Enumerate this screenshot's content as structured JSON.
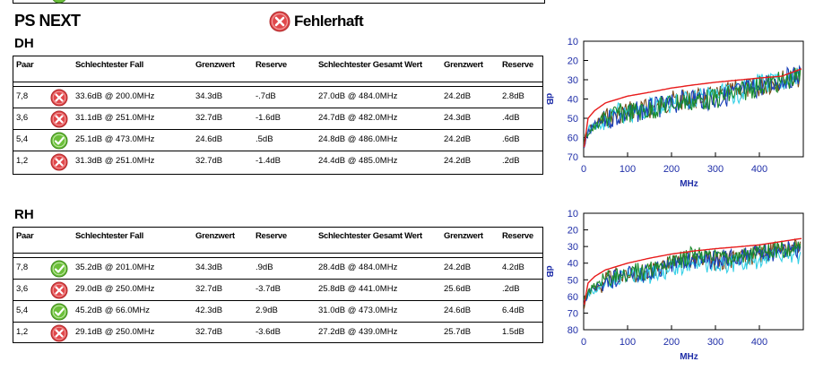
{
  "report": {
    "title": "PS NEXT",
    "status_label": "Fehlerhaft",
    "status_icon": "fail-icon"
  },
  "colors": {
    "fail": "#e0484b",
    "pass": "#6cbf3a",
    "axis_text": "#1f2ea8",
    "limit_line": "#e81a1a",
    "series": [
      "#1b8a2c",
      "#1a3fb8",
      "#35d0e6",
      "#7a4a1a"
    ]
  },
  "columns": {
    "pair": "Paar",
    "worst_case": "Schlechtester Fall",
    "limit": "Grenzwert",
    "margin": "Reserve",
    "worst_total": "Schlechtester Gesamt Wert",
    "limit2": "Grenzwert",
    "margin2": "Reserve"
  },
  "sections": {
    "dh": {
      "label": "DH",
      "rows": [
        {
          "pair": "7,8",
          "result": "fail",
          "worst": "33.6dB @ 200.0MHz",
          "limit": "34.3dB",
          "margin": "-.7dB",
          "total": "27.0dB @ 484.0MHz",
          "limit2": "24.2dB",
          "margin2": "2.8dB"
        },
        {
          "pair": "3,6",
          "result": "fail",
          "worst": "31.1dB @ 251.0MHz",
          "limit": "32.7dB",
          "margin": "-1.6dB",
          "total": "24.7dB @ 482.0MHz",
          "limit2": "24.3dB",
          "margin2": ".4dB"
        },
        {
          "pair": "5,4",
          "result": "pass",
          "worst": "25.1dB @ 473.0MHz",
          "limit": "24.6dB",
          "margin": ".5dB",
          "total": "24.8dB @ 486.0MHz",
          "limit2": "24.2dB",
          "margin2": ".6dB"
        },
        {
          "pair": "1,2",
          "result": "fail",
          "worst": "31.3dB @ 251.0MHz",
          "limit": "32.7dB",
          "margin": "-1.4dB",
          "total": "24.4dB @ 485.0MHz",
          "limit2": "24.2dB",
          "margin2": ".2dB"
        }
      ]
    },
    "rh": {
      "label": "RH",
      "rows": [
        {
          "pair": "7,8",
          "result": "pass",
          "worst": "35.2dB @ 201.0MHz",
          "limit": "34.3dB",
          "margin": ".9dB",
          "total": "28.4dB @ 484.0MHz",
          "limit2": "24.2dB",
          "margin2": "4.2dB"
        },
        {
          "pair": "3,6",
          "result": "fail",
          "worst": "29.0dB @ 250.0MHz",
          "limit": "32.7dB",
          "margin": "-3.7dB",
          "total": "25.8dB @ 441.0MHz",
          "limit2": "25.6dB",
          "margin2": ".2dB"
        },
        {
          "pair": "5,4",
          "result": "pass",
          "worst": "45.2dB @ 66.0MHz",
          "limit": "42.3dB",
          "margin": "2.9dB",
          "total": "31.0dB @ 473.0MHz",
          "limit2": "24.6dB",
          "margin2": "6.4dB"
        },
        {
          "pair": "1,2",
          "result": "fail",
          "worst": "29.1dB @ 250.0MHz",
          "limit": "32.7dB",
          "margin": "-3.6dB",
          "total": "27.2dB @ 439.0MHz",
          "limit2": "25.7dB",
          "margin2": "1.5dB"
        }
      ]
    }
  },
  "chart_data": [
    {
      "type": "line",
      "xlabel": "MHz",
      "ylabel": "dB",
      "xlim": [
        0,
        500
      ],
      "xticks": [
        0,
        100,
        200,
        300,
        400
      ],
      "ylim": [
        10,
        70
      ],
      "yticks": [
        10,
        20,
        30,
        40,
        50,
        60,
        70
      ],
      "y_inverted": true,
      "limit": {
        "x": [
          1,
          10,
          25,
          50,
          100,
          150,
          200,
          250,
          300,
          350,
          400,
          450,
          500
        ],
        "y": [
          65,
          50,
          46,
          42,
          38.5,
          36.5,
          34.3,
          32.7,
          31.3,
          30.2,
          29.1,
          28.2,
          24
        ]
      },
      "series": [
        {
          "x": [
            1,
            10,
            25,
            50,
            75,
            100,
            150,
            200,
            250,
            300,
            350,
            400,
            450,
            500
          ],
          "y": [
            62,
            57,
            55,
            50,
            48,
            47,
            46,
            42,
            41,
            40,
            37,
            33,
            31,
            28
          ]
        },
        {
          "x": [
            1,
            10,
            25,
            50,
            75,
            100,
            150,
            200,
            250,
            300,
            350,
            400,
            450,
            500
          ],
          "y": [
            64,
            58,
            54,
            51,
            49,
            48,
            45,
            43,
            39,
            41,
            36,
            34,
            30,
            27
          ]
        },
        {
          "x": [
            1,
            10,
            25,
            50,
            75,
            100,
            150,
            200,
            250,
            300,
            350,
            400,
            450,
            500
          ],
          "y": [
            63,
            56,
            55,
            52,
            47,
            49,
            44,
            42,
            40,
            38,
            37,
            32,
            31,
            27
          ]
        },
        {
          "x": [
            1,
            10,
            25,
            50,
            75,
            100,
            150,
            200,
            250,
            300,
            350,
            400,
            450,
            500
          ],
          "y": [
            65,
            57,
            53,
            50,
            48,
            46,
            45,
            41,
            40,
            39,
            35,
            34,
            30,
            28
          ]
        }
      ]
    },
    {
      "type": "line",
      "xlabel": "MHz",
      "ylabel": "dB",
      "xlim": [
        0,
        500
      ],
      "xticks": [
        0,
        100,
        200,
        300,
        400
      ],
      "ylim": [
        10,
        80
      ],
      "yticks": [
        10,
        20,
        30,
        40,
        50,
        60,
        70,
        80
      ],
      "y_inverted": true,
      "limit": {
        "x": [
          1,
          10,
          25,
          50,
          100,
          150,
          200,
          250,
          300,
          350,
          400,
          450,
          500
        ],
        "y": [
          65,
          52,
          48,
          44,
          40,
          37,
          34.5,
          32.7,
          31.3,
          30.2,
          29,
          27,
          25
        ]
      },
      "series": [
        {
          "x": [
            1,
            10,
            25,
            50,
            75,
            100,
            150,
            200,
            250,
            300,
            350,
            400,
            450,
            500
          ],
          "y": [
            62,
            57,
            54,
            50,
            48,
            46,
            44,
            40,
            35,
            37,
            35,
            33,
            32,
            30
          ]
        },
        {
          "x": [
            1,
            10,
            25,
            50,
            75,
            100,
            150,
            200,
            250,
            300,
            350,
            400,
            450,
            500
          ],
          "y": [
            64,
            58,
            55,
            51,
            49,
            47,
            45,
            41,
            38,
            38,
            36,
            34,
            33,
            31
          ]
        },
        {
          "x": [
            1,
            10,
            25,
            50,
            75,
            100,
            150,
            200,
            250,
            300,
            350,
            400,
            450,
            500
          ],
          "y": [
            63,
            59,
            56,
            52,
            50,
            48,
            47,
            43,
            40,
            41,
            40,
            38,
            36,
            35
          ]
        },
        {
          "x": [
            1,
            10,
            25,
            50,
            75,
            100,
            150,
            200,
            250,
            300,
            350,
            400,
            450,
            500
          ],
          "y": [
            65,
            57,
            55,
            51,
            48,
            47,
            45,
            40,
            37,
            39,
            37,
            35,
            32,
            30
          ]
        }
      ]
    }
  ]
}
